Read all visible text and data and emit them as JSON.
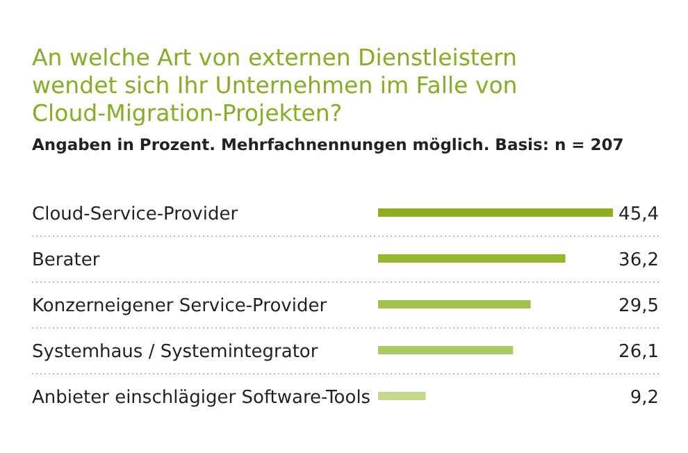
{
  "chart_data": {
    "type": "bar",
    "orientation": "horizontal",
    "title": "An welche Art von externen Dienstleistern wendet sich Ihr Unternehmen im Falle von Cloud-Migration-Projekten?",
    "subtitle": "Angaben in Prozent. Mehrfachnennungen möglich. Basis: n = 207",
    "categories": [
      "Cloud-Service-Provider",
      "Berater",
      "Konzerneigener Service-Provider",
      "Systemhaus / Systemintegrator",
      "Anbieter einschlägiger Software-Tools"
    ],
    "values": [
      45.4,
      36.2,
      29.5,
      26.1,
      9.2
    ],
    "colors": [
      "#8cb01c",
      "#95b72b",
      "#a2c24a",
      "#adc964",
      "#c4d98c"
    ],
    "value_labels": [
      "45,4",
      "36,2",
      "29,5",
      "26,1",
      "9,2"
    ]
  }
}
